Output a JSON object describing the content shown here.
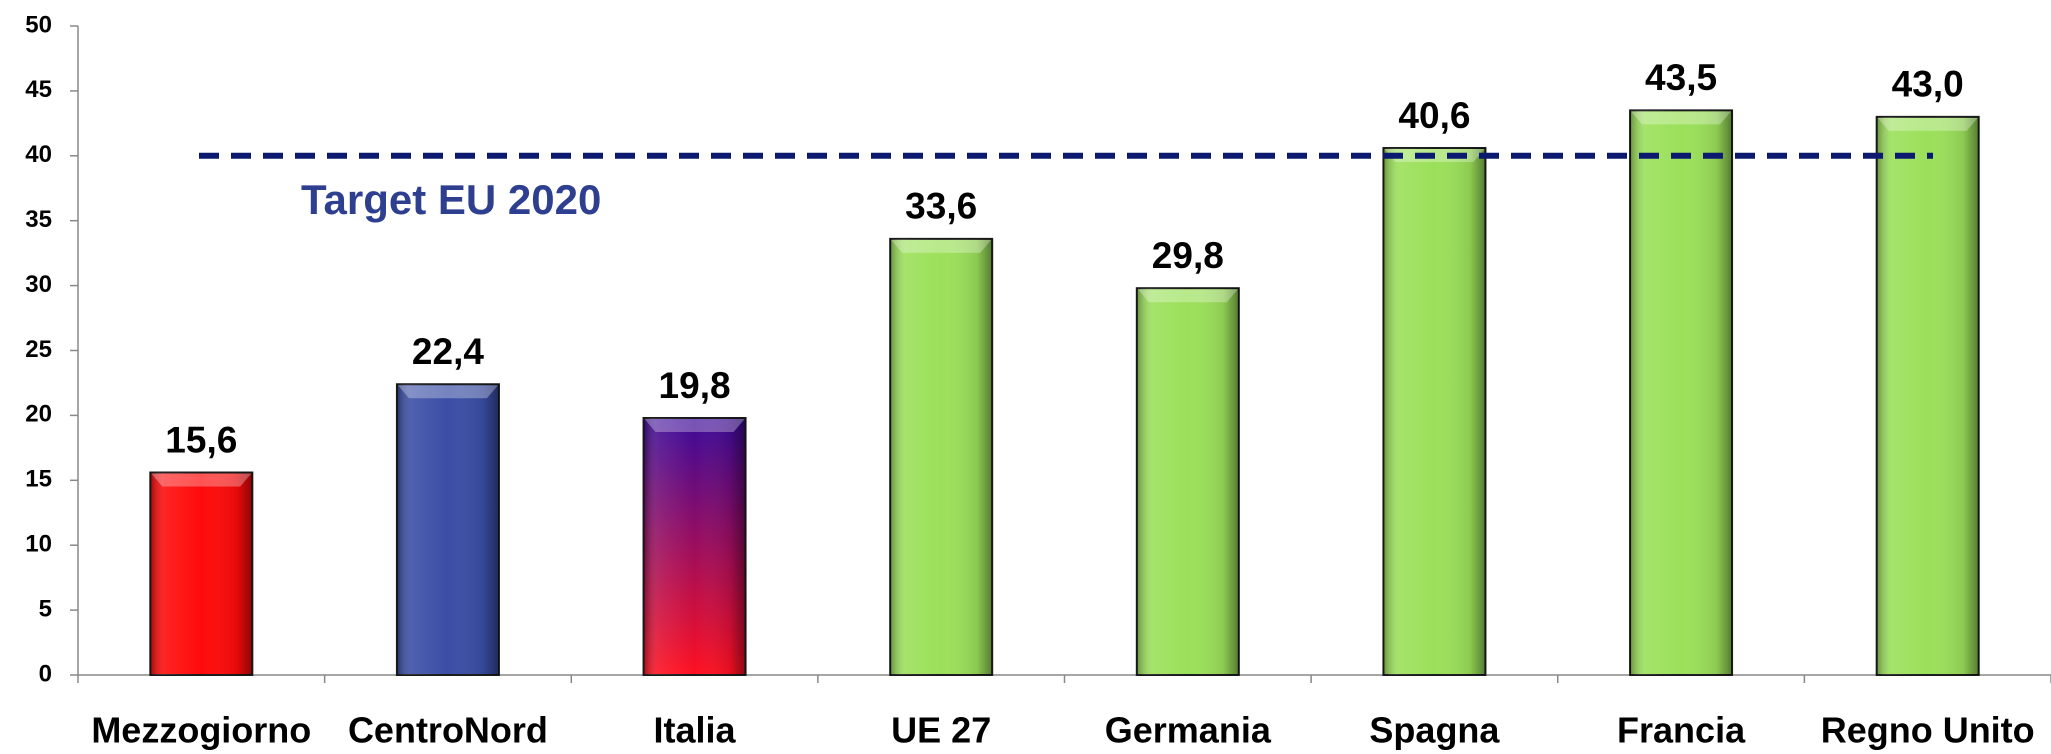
{
  "chart_data": {
    "type": "bar",
    "categories": [
      "Mezzogiorno",
      "CentroNord",
      "Italia",
      "UE 27",
      "Germania",
      "Spagna",
      "Francia",
      "Regno Unito"
    ],
    "values": [
      15.6,
      22.4,
      19.8,
      33.6,
      29.8,
      40.6,
      43.5,
      43.0
    ],
    "value_labels": [
      "15,6",
      "22,4",
      "19,8",
      "33,6",
      "29,8",
      "40,6",
      "43,5",
      "43,0"
    ],
    "colors": [
      "#ff0a0a",
      "#3a4ea6",
      [
        "#3a0a9a",
        "#ff1020"
      ],
      "#9be05a",
      "#9be05a",
      "#9be05a",
      "#9be05a",
      "#9be05a"
    ],
    "ylim": [
      0,
      50
    ],
    "yticks": [
      0,
      5,
      10,
      15,
      20,
      25,
      30,
      35,
      40,
      45,
      50
    ],
    "target": {
      "value": 40,
      "label": "Target EU 2020",
      "color": "#0b1a6e"
    }
  }
}
